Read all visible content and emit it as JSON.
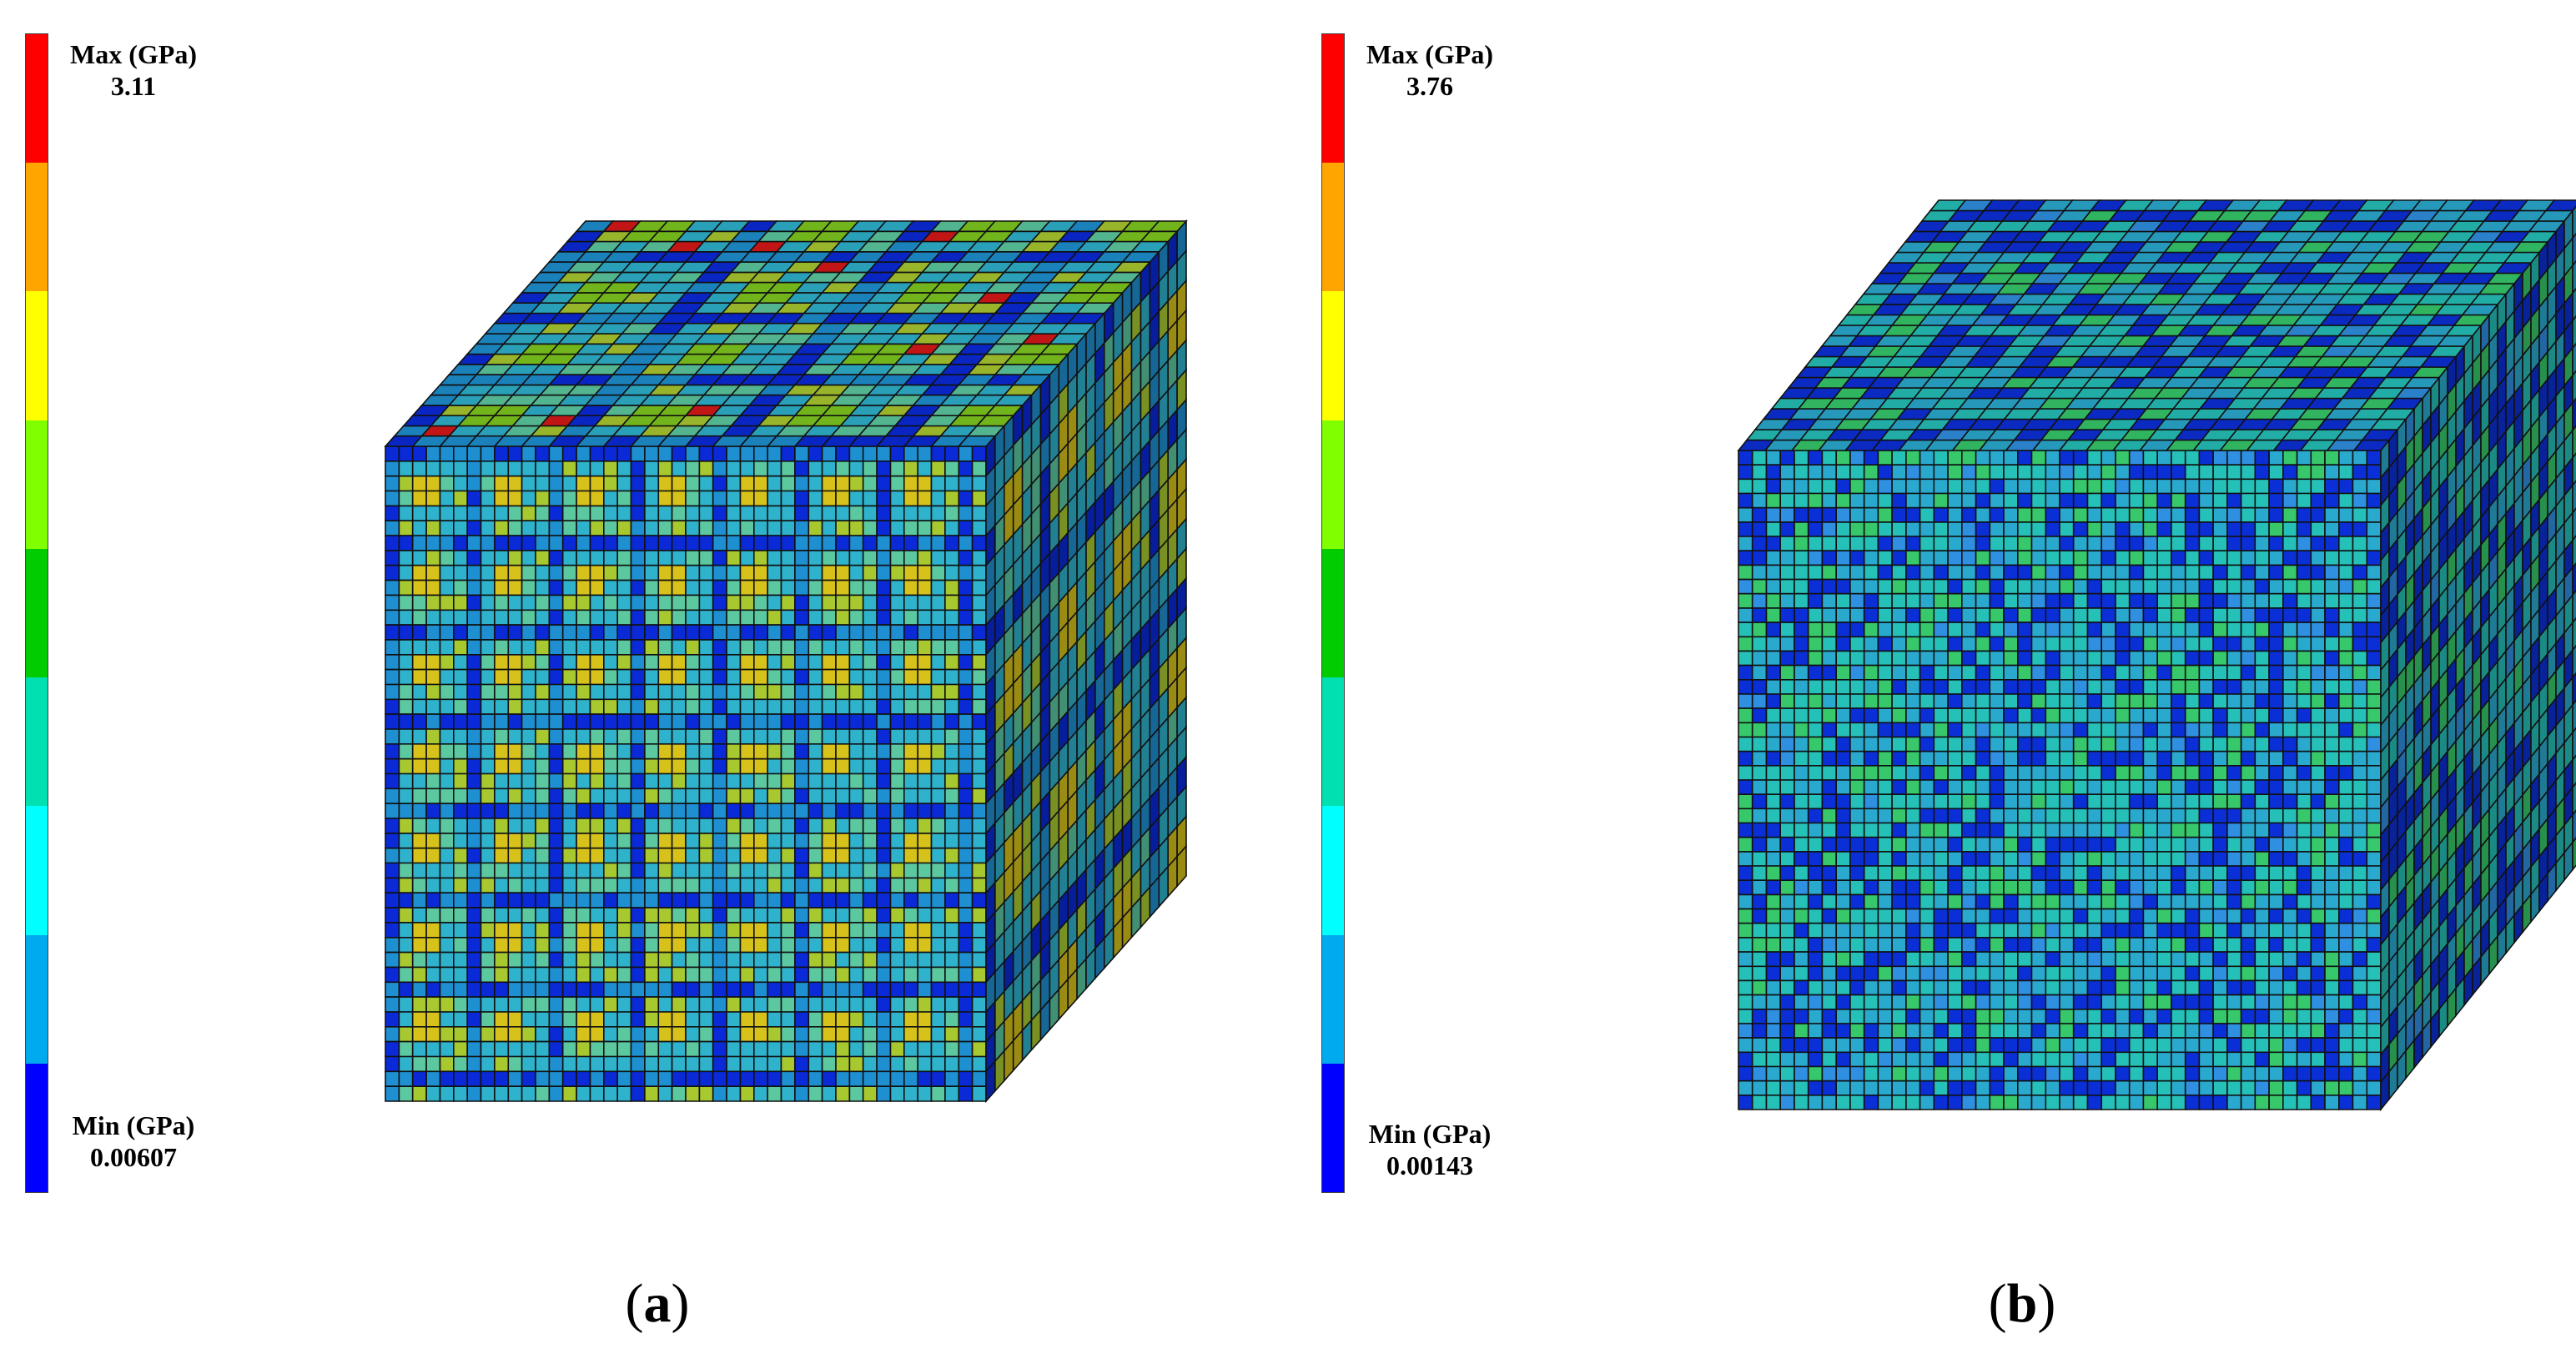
{
  "colorbar_colors": [
    "#ff0000",
    "#ffa500",
    "#ffff00",
    "#7fff00",
    "#00cc00",
    "#00e0b0",
    "#00ffff",
    "#00aaee",
    "#0000ff"
  ],
  "panels": [
    {
      "caption_letter": "a",
      "max_label": "Max (GPa)",
      "max_value": "3.11",
      "min_label": "Min (GPa)",
      "min_value": "0.00607"
    },
    {
      "caption_letter": "b",
      "max_label": "Max (GPa)",
      "max_value": "3.76",
      "min_label": "Min (GPa)",
      "min_value": "0.00143"
    }
  ]
}
